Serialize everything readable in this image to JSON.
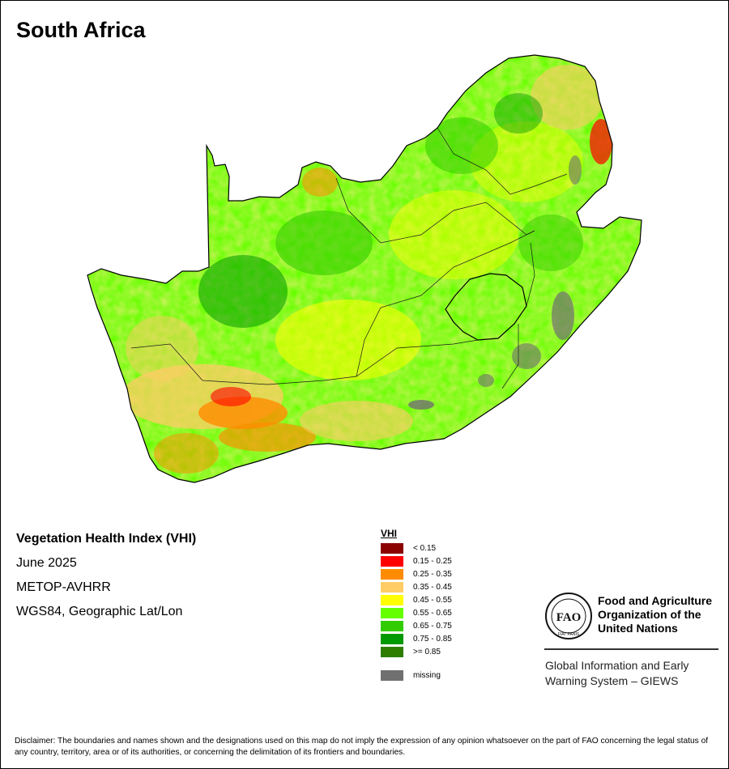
{
  "title": "South Africa",
  "info": {
    "index_name": "Vegetation Health Index (VHI)",
    "period": "June 2025",
    "sensor": "METOP-AVHRR",
    "projection": "WGS84, Geographic Lat/Lon"
  },
  "legend": {
    "title": "VHI",
    "classes": [
      {
        "label": "< 0.15",
        "color": "#8b0000"
      },
      {
        "label": "0.15 - 0.25",
        "color": "#ff0000"
      },
      {
        "label": "0.25 - 0.35",
        "color": "#ff8c00"
      },
      {
        "label": "0.35 - 0.45",
        "color": "#ffcc66"
      },
      {
        "label": "0.45 - 0.55",
        "color": "#ffff00"
      },
      {
        "label": "0.55 - 0.65",
        "color": "#66ff00"
      },
      {
        "label": "0.65 - 0.75",
        "color": "#33cc00"
      },
      {
        "label": "0.75 - 0.85",
        "color": "#009900"
      },
      {
        "label": ">= 0.85",
        "color": "#2e7d00"
      }
    ],
    "missing": {
      "label": "missing",
      "color": "#707070"
    }
  },
  "organization": {
    "name": "Food and Agriculture Organization of the United Nations",
    "logo_letters": "FAO",
    "logo_motto": "FIAT PANIS",
    "system": "Global Information and Early Warning System – GIEWS"
  },
  "disclaimer": "Disclaimer: The boundaries and names shown and the designations used on this map do not imply the expression of any opinion whatsoever on the part of FAO concerning the legal status of any country, territory, area or of its authorities, or concerning the delimitation of its frontiers and boundaries."
}
